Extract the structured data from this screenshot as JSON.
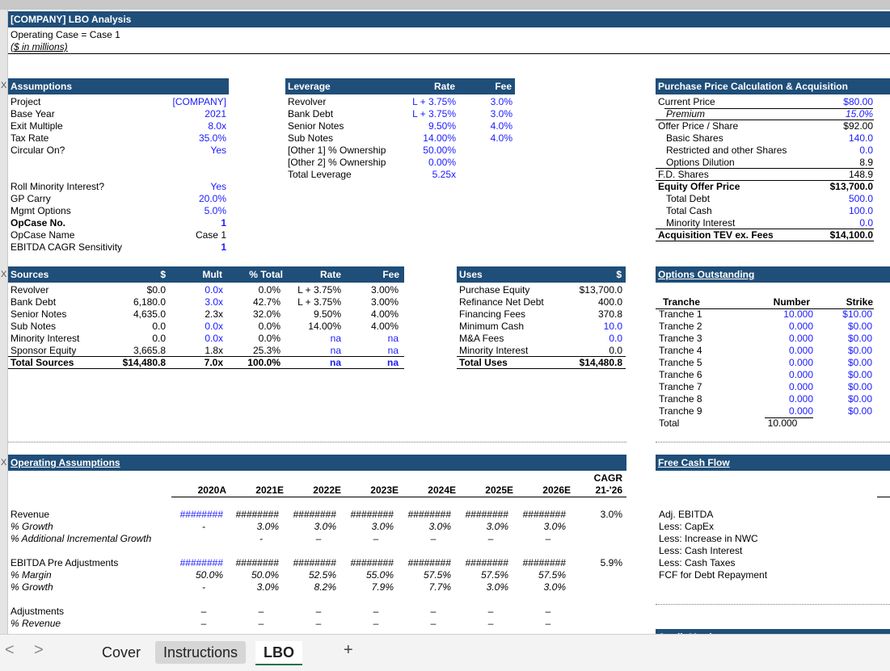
{
  "title": "[COMPANY] LBO Analysis",
  "operating_case_line": "Operating Case = Case 1",
  "units": "($ in millions)",
  "assumptions": {
    "header": "Assumptions",
    "rows": [
      {
        "label": "Project",
        "value": "[COMPANY]"
      },
      {
        "label": "Base Year",
        "value": "2021"
      },
      {
        "label": "Exit Multiple",
        "value": "8.0x"
      },
      {
        "label": "Tax Rate",
        "value": "35.0%"
      },
      {
        "label": "Circular On?",
        "value": "Yes"
      }
    ],
    "rows2": [
      {
        "label": "Roll Minority Interest?",
        "value": "Yes"
      },
      {
        "label": "GP Carry",
        "value": "20.0%"
      },
      {
        "label": "Mgmt Options",
        "value": "5.0%"
      },
      {
        "label": "OpCase No.",
        "value": "1"
      },
      {
        "label": "OpCase Name",
        "value": "Case 1"
      },
      {
        "label": "EBITDA CAGR Sensitivity",
        "value": "1"
      }
    ]
  },
  "leverage": {
    "header": "Leverage",
    "rate_h": "Rate",
    "fee_h": "Fee",
    "rows": [
      {
        "label": "Revolver",
        "rate": "L + 3.75%",
        "fee": "3.0%"
      },
      {
        "label": "Bank Debt",
        "rate": "L + 3.75%",
        "fee": "3.0%"
      },
      {
        "label": "Senior Notes",
        "rate": "9.50%",
        "fee": "4.0%"
      },
      {
        "label": "Sub Notes",
        "rate": "14.00%",
        "fee": "4.0%"
      },
      {
        "label": "[Other 1] % Ownership",
        "rate": "50.00%",
        "fee": ""
      },
      {
        "label": "[Other 2] % Ownership",
        "rate": "0.00%",
        "fee": ""
      },
      {
        "label": "Total Leverage",
        "rate": "5.25x",
        "fee": ""
      }
    ]
  },
  "purchase": {
    "header": "Purchase Price Calculation & Acquisition Multiples",
    "rows": [
      {
        "label": "Current Price",
        "value": "$80.00"
      },
      {
        "label": "Premium",
        "value": "15.0%"
      },
      {
        "label": "Offer Price / Share",
        "value": "$92.00"
      },
      {
        "label": "Basic Shares",
        "value": "140.0"
      },
      {
        "label": "Restricted and other Shares",
        "value": "0.0"
      },
      {
        "label": "Options Dilution",
        "value": "8.9"
      },
      {
        "label": "F.D. Shares",
        "value": "148.9"
      },
      {
        "label": "Equity Offer Price",
        "value": "$13,700.0"
      },
      {
        "label": "Total Debt",
        "value": "500.0"
      },
      {
        "label": "Total Cash",
        "value": "100.0"
      },
      {
        "label": "Minority Interest",
        "value": "0.0"
      },
      {
        "label": "Acquisition TEV ex. Fees",
        "value": "$14,100.0"
      }
    ]
  },
  "sources": {
    "header": "Sources",
    "cols": [
      "$",
      "Mult",
      "% Total",
      "Rate",
      "Fee"
    ],
    "rows": [
      {
        "label": "Revolver",
        "amt": "$0.0",
        "mult": "0.0x",
        "pct": "0.0%",
        "rate": "L + 3.75%",
        "fee": "3.00%"
      },
      {
        "label": "Bank Debt",
        "amt": "6,180.0",
        "mult": "3.0x",
        "pct": "42.7%",
        "rate": "L + 3.75%",
        "fee": "3.00%"
      },
      {
        "label": "Senior Notes",
        "amt": "4,635.0",
        "mult": "2.3x",
        "pct": "32.0%",
        "rate": "9.50%",
        "fee": "4.00%"
      },
      {
        "label": "Sub Notes",
        "amt": "0.0",
        "mult": "0.0x",
        "pct": "0.0%",
        "rate": "14.00%",
        "fee": "4.00%"
      },
      {
        "label": "Minority Interest",
        "amt": "0.0",
        "mult": "0.0x",
        "pct": "0.0%",
        "rate": "na",
        "fee": "na"
      },
      {
        "label": "Sponsor Equity",
        "amt": "3,665.8",
        "mult": "1.8x",
        "pct": "25.3%",
        "rate": "na",
        "fee": "na"
      },
      {
        "label": "Total Sources",
        "amt": "$14,480.8",
        "mult": "7.0x",
        "pct": "100.0%",
        "rate": "na",
        "fee": "na"
      }
    ]
  },
  "uses": {
    "header": "Uses",
    "col": "$",
    "rows": [
      {
        "label": "Purchase Equity",
        "value": "$13,700.0"
      },
      {
        "label": "Refinance Net Debt",
        "value": "400.0"
      },
      {
        "label": "Financing Fees",
        "value": "370.8"
      },
      {
        "label": "Minimum Cash",
        "value": "10.0"
      },
      {
        "label": "M&A Fees",
        "value": "0.0"
      },
      {
        "label": "Minority Interest",
        "value": "0.0"
      },
      {
        "label": "Total Uses",
        "value": "$14,480.8"
      }
    ]
  },
  "options": {
    "header": "Options Outstanding",
    "cols": [
      "Tranche",
      "Number",
      "Strike"
    ],
    "rows": [
      {
        "t": "Tranche 1",
        "n": "10.000",
        "s": "$10.00"
      },
      {
        "t": "Tranche 2",
        "n": "0.000",
        "s": "$0.00"
      },
      {
        "t": "Tranche 3",
        "n": "0.000",
        "s": "$0.00"
      },
      {
        "t": "Tranche 4",
        "n": "0.000",
        "s": "$0.00"
      },
      {
        "t": "Tranche 5",
        "n": "0.000",
        "s": "$0.00"
      },
      {
        "t": "Tranche 6",
        "n": "0.000",
        "s": "$0.00"
      },
      {
        "t": "Tranche 7",
        "n": "0.000",
        "s": "$0.00"
      },
      {
        "t": "Tranche 8",
        "n": "0.000",
        "s": "$0.00"
      },
      {
        "t": "Tranche 9",
        "n": "0.000",
        "s": "$0.00"
      }
    ],
    "total_label": "Total",
    "total": "10.000"
  },
  "operating": {
    "header": "Operating Assumptions",
    "years": [
      "2020A",
      "2021E",
      "2022E",
      "2023E",
      "2024E",
      "2025E",
      "2026E"
    ],
    "cagr_h1": "CAGR",
    "cagr_h2": "21-'26",
    "rows": [
      {
        "label": "Revenue",
        "style": "n",
        "vals": [
          "########",
          "########",
          "########",
          "########",
          "########",
          "########",
          "########"
        ],
        "cagr": "3.0%"
      },
      {
        "label": "% Growth",
        "style": "i",
        "vals": [
          "-",
          "3.0%",
          "3.0%",
          "3.0%",
          "3.0%",
          "3.0%",
          "3.0%"
        ],
        "cagr": ""
      },
      {
        "label": "% Additional Incremental Growth",
        "style": "i",
        "vals": [
          "",
          "-",
          "–",
          "–",
          "–",
          "–",
          "–"
        ],
        "cagr": ""
      },
      {
        "label": "EBITDA Pre Adjustments",
        "style": "n",
        "vals": [
          "########",
          "########",
          "########",
          "########",
          "########",
          "########",
          "########"
        ],
        "cagr": "5.9%"
      },
      {
        "label": "% Margin",
        "style": "i",
        "vals": [
          "50.0%",
          "50.0%",
          "52.5%",
          "55.0%",
          "57.5%",
          "57.5%",
          "57.5%"
        ],
        "cagr": ""
      },
      {
        "label": "% Growth",
        "style": "i",
        "vals": [
          "-",
          "3.0%",
          "8.2%",
          "7.9%",
          "7.7%",
          "3.0%",
          "3.0%"
        ],
        "cagr": ""
      },
      {
        "label": "Adjustments",
        "style": "n",
        "vals": [
          "–",
          "–",
          "–",
          "–",
          "–",
          "–",
          "–"
        ],
        "cagr": ""
      },
      {
        "label": "% Revenue",
        "style": "i",
        "vals": [
          "–",
          "–",
          "–",
          "–",
          "–",
          "–",
          "–"
        ],
        "cagr": ""
      }
    ]
  },
  "fcf": {
    "header": "Free Cash Flow",
    "rows": [
      "Adj. EBITDA",
      "Less: CapEx",
      "Less: Increase in NWC",
      "Less: Cash Interest",
      "Less: Cash Taxes",
      "FCF for Debt Repayment"
    ]
  },
  "credit_header": "Credit Metrics",
  "row_marker": "X",
  "tabs": {
    "prev": "<",
    "next": ">",
    "items": [
      "Cover",
      "Instructions",
      "LBO"
    ],
    "add": "+"
  }
}
